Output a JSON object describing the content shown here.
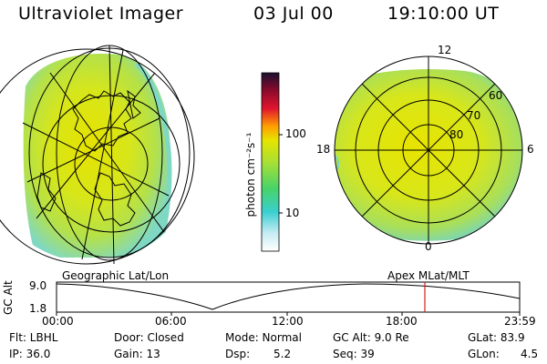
{
  "header": {
    "title": "Ultraviolet Imager",
    "date": "03 Jul 00",
    "time": "19:10:00 UT"
  },
  "colorbar": {
    "unit_label": "photon cm⁻²s⁻¹",
    "ticks": [
      "100",
      "10"
    ]
  },
  "left_panel": {
    "caption": "Geographic Lat/Lon"
  },
  "right_panel": {
    "caption": "Apex MLat/MLT",
    "mlt_labels": {
      "top": "12",
      "left": "18",
      "right": "6",
      "bottom": "0"
    },
    "lat_labels": [
      "60",
      "70",
      "80"
    ]
  },
  "altitude_plot": {
    "ylabel": "GC Alt",
    "yticks": [
      "9.0",
      "1.8"
    ],
    "xticks": [
      "00:00",
      "06:00",
      "12:00",
      "18:00",
      "23:59"
    ],
    "marker_color": "#d02020"
  },
  "info_rows": [
    [
      "Flt: LBHL",
      "Door: Closed",
      "Mode: Normal",
      "GC Alt: 9.0 Re",
      "GLat: 83.9"
    ],
    [
      "IP: 36.0",
      "Gain: 13",
      "Dsp:",
      "5.2",
      "Seq: 39",
      "GLon:",
      "4.5"
    ]
  ]
}
